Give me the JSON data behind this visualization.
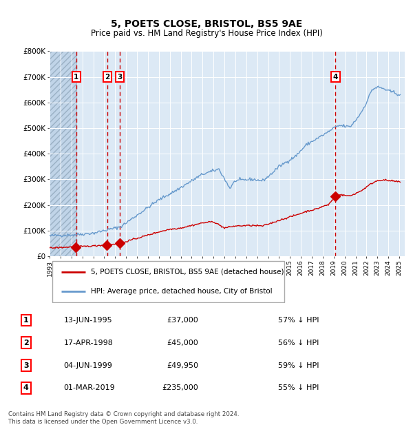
{
  "title": "5, POETS CLOSE, BRISTOL, BS5 9AE",
  "subtitle": "Price paid vs. HM Land Registry's House Price Index (HPI)",
  "footer": "Contains HM Land Registry data © Crown copyright and database right 2024.\nThis data is licensed under the Open Government Licence v3.0.",
  "legend_entry1": "5, POETS CLOSE, BRISTOL, BS5 9AE (detached house)",
  "legend_entry2": "HPI: Average price, detached house, City of Bristol",
  "transactions": [
    {
      "num": 1,
      "date": "13-JUN-1995",
      "price": "37,000",
      "hpi_pct": "57% ↓ HPI",
      "year": 1995.45
    },
    {
      "num": 2,
      "date": "17-APR-1998",
      "price": "45,000",
      "hpi_pct": "56% ↓ HPI",
      "year": 1998.29
    },
    {
      "num": 3,
      "date": "04-JUN-1999",
      "price": "49,950",
      "hpi_pct": "59% ↓ HPI",
      "year": 1999.42
    },
    {
      "num": 4,
      "date": "01-MAR-2019",
      "price": "235,000",
      "hpi_pct": "55% ↓ HPI",
      "year": 2019.17
    }
  ],
  "hpi_color": "#6699cc",
  "price_color": "#cc0000",
  "bg_color": "#dce9f5",
  "grid_color": "#ffffff",
  "dashed_color": "#cc0000",
  "ylim": [
    0,
    800000
  ],
  "xlim_start": 1993.0,
  "xlim_end": 2025.5,
  "yticks": [
    0,
    100000,
    200000,
    300000,
    400000,
    500000,
    600000,
    700000,
    800000
  ],
  "ytick_labels": [
    "£0",
    "£100K",
    "£200K",
    "£300K",
    "£400K",
    "£500K",
    "£600K",
    "£700K",
    "£800K"
  ],
  "xticks": [
    1993,
    1994,
    1995,
    1996,
    1997,
    1998,
    1999,
    2000,
    2001,
    2002,
    2003,
    2004,
    2005,
    2006,
    2007,
    2008,
    2009,
    2010,
    2011,
    2012,
    2013,
    2014,
    2015,
    2016,
    2017,
    2018,
    2019,
    2020,
    2021,
    2022,
    2023,
    2024,
    2025
  ]
}
